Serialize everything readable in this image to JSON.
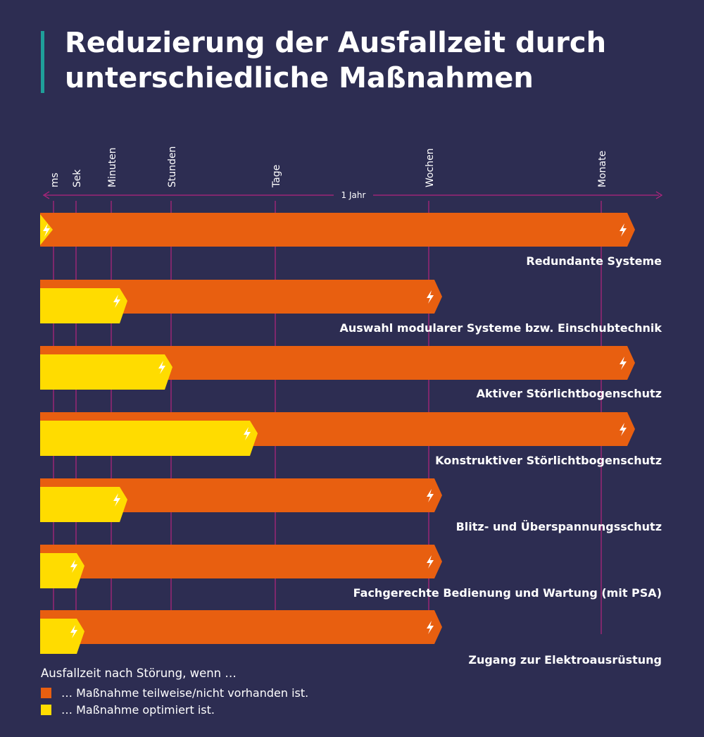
{
  "title_lines": [
    "Reduzierung der Ausfallzeit durch",
    "unterschiedliche Maßnahmen"
  ],
  "colors": {
    "background": "#2d2d52",
    "accent": "#1f9f9a",
    "not_present": "#e85f10",
    "optimized": "#ffdc00",
    "axis": "#b3247e"
  },
  "chart_data": {
    "type": "bar",
    "orientation": "horizontal",
    "scale": "ordinal-time",
    "time_units": [
      "ms",
      "Sek",
      "Minuten",
      "Stunden",
      "Tage",
      "Wochen",
      "Monate"
    ],
    "range_label": "1 Jahr",
    "categories": [
      "Redundante Systeme",
      "Auswahl modularer Systeme bzw. Einschubtechnik",
      "Aktiver Störlichtbogenschutz",
      "Konstruktiver Störlichtbogenschutz",
      "Blitz- und Überspannungsschutz",
      "Fachgerechte Bedienung und Wartung (mit PSA)",
      "Zugang zur Elektroausrüstung"
    ],
    "series": [
      {
        "key": "not_present",
        "values": [
          "Monate",
          "Wochen",
          "Monate",
          "Monate",
          "Wochen",
          "Wochen",
          "Wochen"
        ]
      },
      {
        "key": "optimized",
        "values": [
          "ms",
          "Minuten",
          "Stunden",
          "Tage",
          "Minuten",
          "Sek",
          "Sek"
        ]
      }
    ]
  },
  "legend": {
    "title": "Ausfallzeit nach Störung, wenn …",
    "items": [
      {
        "key": "not_present",
        "label": "… Maßnahme teilweise/nicht vorhanden ist."
      },
      {
        "key": "optimized",
        "label": "… Maßnahme optimiert ist."
      }
    ]
  }
}
